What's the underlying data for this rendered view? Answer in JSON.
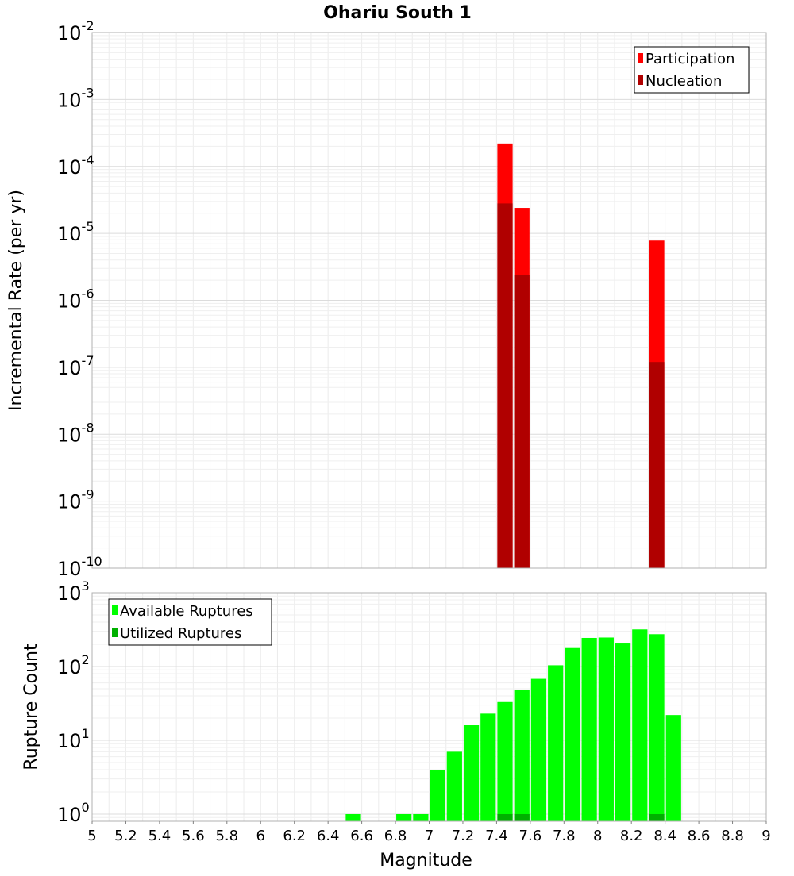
{
  "chart_data": [
    {
      "type": "bar",
      "title": "Ohariu South 1",
      "xlabel": "",
      "ylabel": "Incremental Rate (per yr)",
      "xlim": [
        5,
        9
      ],
      "ylim": [
        1e-10,
        0.01
      ],
      "yscale": "log",
      "bin_width": 0.1,
      "y_ticks": [
        "10^-10",
        "10^-9",
        "10^-8",
        "10^-7",
        "10^-6",
        "10^-5",
        "10^-4",
        "10^-3",
        "10^-2"
      ],
      "grid": true,
      "legend_position": "top-right",
      "series": [
        {
          "name": "Participation",
          "color": "#ff0000",
          "points": [
            {
              "x": 7.45,
              "y": 0.00022
            },
            {
              "x": 7.55,
              "y": 2.4e-05
            },
            {
              "x": 8.35,
              "y": 7.8e-06
            }
          ]
        },
        {
          "name": "Nucleation",
          "color": "#b00000",
          "points": [
            {
              "x": 7.45,
              "y": 2.8e-05
            },
            {
              "x": 7.55,
              "y": 2.4e-06
            },
            {
              "x": 8.35,
              "y": 1.2e-07
            }
          ]
        }
      ]
    },
    {
      "type": "bar",
      "title": "",
      "xlabel": "Magnitude",
      "ylabel": "Rupture Count",
      "xlim": [
        5,
        9
      ],
      "ylim": [
        0.8,
        1000
      ],
      "yscale": "log",
      "bin_width": 0.1,
      "y_ticks": [
        "10^0",
        "10^1",
        "10^2",
        "10^3"
      ],
      "x_ticks": [
        "5",
        "5.2",
        "5.4",
        "5.6",
        "5.8",
        "6",
        "6.2",
        "6.4",
        "6.6",
        "6.8",
        "7",
        "7.2",
        "7.4",
        "7.6",
        "7.8",
        "8",
        "8.2",
        "8.4",
        "8.6",
        "8.8",
        "9"
      ],
      "grid": true,
      "legend_position": "top-left",
      "series": [
        {
          "name": "Available Ruptures",
          "color": "#00ff00",
          "points": [
            {
              "x": 6.55,
              "y": 1
            },
            {
              "x": 6.85,
              "y": 1
            },
            {
              "x": 6.95,
              "y": 1
            },
            {
              "x": 7.05,
              "y": 4
            },
            {
              "x": 7.15,
              "y": 7
            },
            {
              "x": 7.25,
              "y": 16
            },
            {
              "x": 7.35,
              "y": 23
            },
            {
              "x": 7.45,
              "y": 33
            },
            {
              "x": 7.55,
              "y": 48
            },
            {
              "x": 7.65,
              "y": 68
            },
            {
              "x": 7.75,
              "y": 104
            },
            {
              "x": 7.85,
              "y": 178
            },
            {
              "x": 7.95,
              "y": 244
            },
            {
              "x": 8.05,
              "y": 247
            },
            {
              "x": 8.15,
              "y": 210
            },
            {
              "x": 8.25,
              "y": 318
            },
            {
              "x": 8.35,
              "y": 274
            },
            {
              "x": 8.45,
              "y": 22
            }
          ]
        },
        {
          "name": "Utilized Ruptures",
          "color": "#00b000",
          "points": [
            {
              "x": 7.45,
              "y": 1
            },
            {
              "x": 7.55,
              "y": 1
            },
            {
              "x": 8.35,
              "y": 1
            }
          ]
        }
      ]
    }
  ]
}
